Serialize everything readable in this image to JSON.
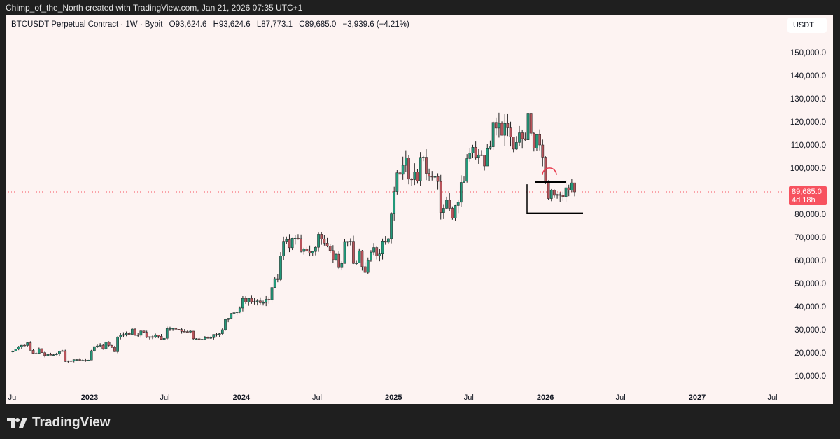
{
  "credit": "Chimp_of_the_North created with TradingView.com, Jan 21, 2026 07:35 UTC+1",
  "legend": {
    "symbol": "BTCUSDT Perpetual Contract · 1W · Bybit",
    "open": "O93,624.6",
    "high": "H93,624.6",
    "low": "L87,773.1",
    "close": "C89,685.0",
    "change": "−3,939.6 (−4.21%)"
  },
  "currency": "USDT",
  "price_label": {
    "price": "89,685.0",
    "countdown": "4d 18h",
    "color": "#f7525f"
  },
  "brand": "TradingView",
  "colors": {
    "up": "#22997a",
    "down": "#b8545b",
    "background": "#fdf3f2"
  },
  "chart_data": {
    "type": "candlestick",
    "interval": "1W",
    "ylim": [
      0,
      160000
    ],
    "y_ticks": [
      "150,000.0",
      "140,000.0",
      "130,000.0",
      "120,000.0",
      "110,000.0",
      "100,000.0",
      "80,000.0",
      "70,000.0",
      "60,000.0",
      "50,000.0",
      "40,000.0",
      "30,000.0",
      "20,000.0",
      "10,000.0"
    ],
    "y_tick_values": [
      150000,
      140000,
      130000,
      120000,
      110000,
      100000,
      80000,
      70000,
      60000,
      50000,
      40000,
      30000,
      20000,
      10000
    ],
    "x_ticks": [
      {
        "label": "Jul",
        "date": "2022-07-01",
        "bold": false
      },
      {
        "label": "2023",
        "date": "2023-01-01",
        "bold": true
      },
      {
        "label": "Jul",
        "date": "2023-07-01",
        "bold": false
      },
      {
        "label": "2024",
        "date": "2024-01-01",
        "bold": true
      },
      {
        "label": "Jul",
        "date": "2024-07-01",
        "bold": false
      },
      {
        "label": "2025",
        "date": "2025-01-01",
        "bold": true
      },
      {
        "label": "Jul",
        "date": "2025-07-01",
        "bold": false
      },
      {
        "label": "2026",
        "date": "2026-01-01",
        "bold": true
      },
      {
        "label": "Jul",
        "date": "2026-07-01",
        "bold": false
      },
      {
        "label": "2027",
        "date": "2027-01-01",
        "bold": true
      },
      {
        "label": "Jul",
        "date": "2027-07-01",
        "bold": false
      }
    ],
    "first_week": "2022-06-27",
    "weekly_close": [
      20.8,
      21.6,
      22.6,
      23.3,
      23.2,
      24.4,
      21.1,
      19.8,
      19.8,
      21.8,
      20.1,
      18.8,
      19.3,
      19.1,
      19.2,
      19.5,
      20.8,
      20.9,
      16.3,
      16.6,
      16.5,
      17.1,
      17.1,
      16.8,
      16.8,
      16.6,
      16.9,
      20.9,
      22.7,
      23.0,
      23.3,
      21.8,
      24.6,
      23.2,
      22.4,
      20.5,
      26.9,
      27.6,
      27.9,
      28.4,
      28.0,
      30.3,
      27.8,
      27.6,
      29.5,
      28.9,
      26.9,
      27.0,
      26.9,
      27.7,
      27.2,
      25.8,
      26.3,
      30.5,
      30.5,
      30.6,
      30.2,
      30.1,
      29.3,
      29.2,
      29.0,
      29.4,
      26.1,
      26.1,
      25.9,
      25.9,
      26.6,
      26.5,
      26.6,
      28.0,
      27.9,
      28.3,
      30.0,
      34.5,
      35.0,
      37.1,
      37.4,
      37.8,
      39.4,
      43.6,
      41.9,
      43.6,
      42.1,
      42.2,
      42.5,
      41.7,
      41.8,
      43.2,
      43.0,
      48.3,
      52.1,
      51.7,
      62.0,
      68.3,
      69.0,
      65.5,
      69.6,
      69.6,
      69.4,
      63.9,
      65.0,
      64.0,
      63.1,
      63.9,
      65.7,
      71.4,
      69.3,
      67.5,
      66.2,
      64.3,
      60.3,
      62.7,
      56.9,
      58.7,
      68.2,
      68.0,
      68.3,
      58.7,
      58.9,
      64.2,
      57.3,
      54.8,
      60.0,
      63.6,
      65.6,
      62.0,
      62.8,
      68.4,
      67.9,
      69.4,
      80.4,
      89.8,
      98.0,
      97.3,
      101.2,
      104.4,
      95.2,
      95.0,
      98.3,
      94.5,
      104.6,
      104.7,
      97.7,
      96.4,
      96.1,
      96.3,
      94.2,
      80.7,
      82.6,
      86.1,
      82.6,
      78.4,
      83.8,
      85.2,
      93.8,
      94.3,
      104.1,
      106.5,
      109.0,
      104.6,
      105.7,
      105.6,
      100.9,
      108.4,
      109.2,
      119.8,
      117.3,
      119.4,
      114.2,
      119.3,
      117.4,
      113.5,
      108.2,
      111.1,
      115.3,
      112.7,
      112.2,
      123.5,
      115.1,
      108.6,
      114.5,
      110.0,
      104.7,
      94.4,
      86.8,
      90.4,
      88.2,
      88.5,
      88.2,
      87.6,
      91.5,
      90.5,
      93.6,
      89.685
    ],
    "weekly_close_unit": "thousand USDT",
    "last_price": 89685.0,
    "drawings": [
      {
        "type": "horizontal-segment",
        "price": 94000,
        "style": "thick black"
      },
      {
        "type": "horizontal-segment",
        "price": 80500,
        "style": "black"
      },
      {
        "type": "arc",
        "price": 99000,
        "color": "#e8394d"
      }
    ]
  }
}
